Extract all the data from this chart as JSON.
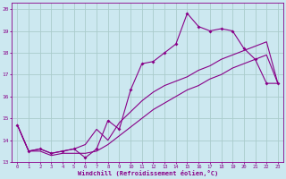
{
  "bg_color": "#cce8f0",
  "line_color": "#880088",
  "grid_color": "#aacccc",
  "xlabel": "Windchill (Refroidissement éolien,°C)",
  "xlim_min": -0.5,
  "xlim_max": 23.5,
  "ylim_min": 13.0,
  "ylim_max": 20.3,
  "xticks": [
    0,
    1,
    2,
    3,
    4,
    5,
    6,
    7,
    8,
    9,
    10,
    11,
    12,
    13,
    14,
    15,
    16,
    17,
    18,
    19,
    20,
    21,
    22,
    23
  ],
  "yticks": [
    13,
    14,
    15,
    16,
    17,
    18,
    19,
    20
  ],
  "line1_x": [
    0,
    1,
    2,
    3,
    4,
    5,
    6,
    7,
    8,
    9,
    10,
    11,
    12,
    13,
    14,
    15,
    16,
    17,
    18,
    19,
    20,
    21,
    22,
    23
  ],
  "line1_y": [
    14.7,
    13.5,
    13.6,
    13.4,
    13.5,
    13.6,
    13.2,
    13.6,
    14.9,
    14.5,
    16.3,
    17.5,
    17.6,
    18.0,
    18.4,
    19.8,
    19.2,
    19.0,
    19.1,
    19.0,
    18.2,
    17.7,
    16.6,
    16.6
  ],
  "line2_x": [
    0,
    1,
    2,
    3,
    4,
    5,
    6,
    7,
    8,
    9,
    10,
    11,
    12,
    13,
    14,
    15,
    16,
    17,
    18,
    19,
    20,
    21,
    22,
    23
  ],
  "line2_y": [
    14.7,
    13.5,
    13.6,
    13.4,
    13.5,
    13.6,
    13.8,
    14.5,
    14.0,
    14.8,
    15.3,
    15.8,
    16.2,
    16.5,
    16.7,
    16.9,
    17.2,
    17.4,
    17.7,
    17.9,
    18.1,
    18.3,
    18.5,
    16.6
  ],
  "line3_x": [
    0,
    1,
    2,
    3,
    4,
    5,
    6,
    7,
    8,
    9,
    10,
    11,
    12,
    13,
    14,
    15,
    16,
    17,
    18,
    19,
    20,
    21,
    22,
    23
  ],
  "line3_y": [
    14.7,
    13.5,
    13.5,
    13.3,
    13.4,
    13.4,
    13.4,
    13.5,
    13.8,
    14.2,
    14.6,
    15.0,
    15.4,
    15.7,
    16.0,
    16.3,
    16.5,
    16.8,
    17.0,
    17.3,
    17.5,
    17.7,
    17.9,
    16.6
  ]
}
